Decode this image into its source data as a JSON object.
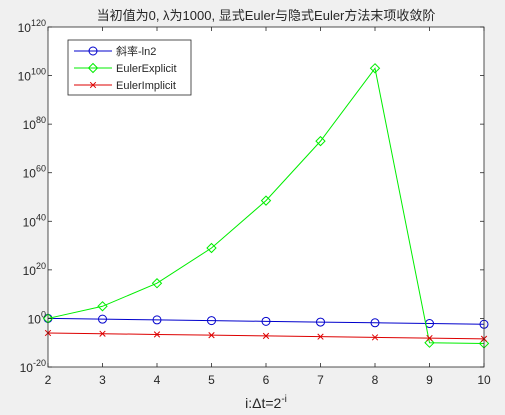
{
  "chart_data": {
    "type": "line",
    "title": "当初值为0, λ为1000, 显式Euler与隐式Euler方法末项收敛阶",
    "xlabel_main": "i:Δt=2",
    "xlabel_sup": "-i",
    "ylabel": "",
    "x": [
      2,
      3,
      4,
      5,
      6,
      7,
      8,
      9,
      10
    ],
    "xlim": [
      2,
      10
    ],
    "xticks": [
      "2",
      "3",
      "4",
      "5",
      "6",
      "7",
      "8",
      "9",
      "10"
    ],
    "yscale": "log",
    "ylim_exp": [
      -20,
      120
    ],
    "yticks": [
      {
        "exp": -20,
        "label": "-20"
      },
      {
        "exp": 0,
        "label": "0"
      },
      {
        "exp": 20,
        "label": "20"
      },
      {
        "exp": 40,
        "label": "40"
      },
      {
        "exp": 60,
        "label": "60"
      },
      {
        "exp": 80,
        "label": "80"
      },
      {
        "exp": 100,
        "label": "100"
      },
      {
        "exp": 120,
        "label": "120"
      }
    ],
    "ytick_base": "10",
    "grid": false,
    "legend_position": "top-left",
    "series": [
      {
        "name": "斜率-ln2",
        "color": "#0000cc",
        "marker": "circle",
        "log10_values": [
          0.0,
          -0.3,
          -0.6,
          -0.9,
          -1.2,
          -1.5,
          -1.8,
          -2.1,
          -2.4
        ]
      },
      {
        "name": "EulerExplicit",
        "color": "#00ee00",
        "marker": "diamond",
        "log10_values": [
          0.0,
          5.0,
          14.5,
          29.0,
          48.5,
          73.0,
          103.0,
          -10.0,
          -10.3
        ]
      },
      {
        "name": "EulerImplicit",
        "color": "#dd0000",
        "marker": "x",
        "log10_values": [
          -6.0,
          -6.3,
          -6.6,
          -6.9,
          -7.2,
          -7.5,
          -7.8,
          -8.1,
          -8.4
        ]
      }
    ]
  }
}
